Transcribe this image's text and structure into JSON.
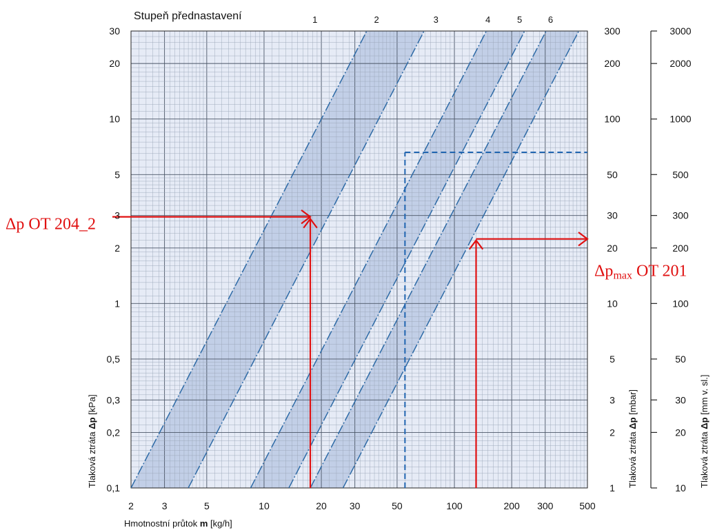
{
  "chart_data": {
    "type": "line",
    "x_scale": "log",
    "y_scale": "log",
    "xlim": [
      2,
      500
    ],
    "ylim": [
      0.1,
      30
    ],
    "grid": true,
    "series_label": "Stupeň přednastavení",
    "x_axis": {
      "label_prefix": "Hmotnostní průtok ",
      "label_bold": "m",
      "label_suffix": " [kg/h]",
      "ticks": [
        2,
        3,
        5,
        10,
        20,
        30,
        50,
        100,
        200,
        300,
        500
      ],
      "tick_labels": [
        "2",
        "3",
        "5",
        "10",
        "20",
        "30",
        "50",
        "100",
        "200",
        "300",
        "500"
      ]
    },
    "y_axes": [
      {
        "label_prefix": "Tlaková ztráta ",
        "label_bold": "Δp",
        "label_suffix": " [kPa]",
        "ticks": [
          0.1,
          0.2,
          0.3,
          0.5,
          1,
          2,
          3,
          5,
          10,
          20,
          30
        ],
        "tick_labels": [
          "0,1",
          "0,2",
          "0,3",
          "0,5",
          "1",
          "2",
          "3",
          "5",
          "10",
          "20",
          "30"
        ]
      },
      {
        "label_prefix": "Tlaková ztráta ",
        "label_bold": "Δp",
        "label_suffix": " [mbar]",
        "ticks": [
          0.1,
          0.2,
          0.3,
          0.5,
          1,
          2,
          3,
          5,
          10,
          20,
          30
        ],
        "tick_labels": [
          "1",
          "2",
          "3",
          "5",
          "10",
          "20",
          "30",
          "50",
          "100",
          "200",
          "300"
        ]
      },
      {
        "label_prefix": "Tlaková ztráta ",
        "label_bold": "Δp",
        "label_suffix": " [mm v. sl.]",
        "ticks": [
          0.1,
          0.2,
          0.3,
          0.5,
          1,
          2,
          3,
          5,
          10,
          20,
          30
        ],
        "tick_labels": [
          "10",
          "20",
          "30",
          "50",
          "100",
          "200",
          "300",
          "500",
          "1000",
          "2000",
          "3000"
        ]
      }
    ],
    "lines": [
      {
        "id": "a",
        "x_at_y_0_1": 2.0
      },
      {
        "id": "b",
        "x_at_y_0_1": 4.0
      },
      {
        "id": "c",
        "x_at_y_0_1": 8.5
      },
      {
        "id": "d",
        "x_at_y_0_1": 13.5
      },
      {
        "id": "e",
        "x_at_y_0_1": 17.5
      },
      {
        "id": "f",
        "x_at_y_0_1": 26.0
      }
    ],
    "line_slope": 2,
    "band_pairs": [
      [
        "a",
        "b"
      ],
      [
        "c",
        "d"
      ],
      [
        "e",
        "f"
      ]
    ],
    "preset_labels": [
      {
        "text": "1",
        "x": 18.5
      },
      {
        "text": "2",
        "x": 39
      },
      {
        "text": "3",
        "x": 80
      },
      {
        "text": "4",
        "x": 150
      },
      {
        "text": "5",
        "x": 220
      },
      {
        "text": "6",
        "x": 320
      }
    ],
    "reference_lines": {
      "vertical_x": 55,
      "horizontal_y": 6.6
    },
    "arrows": [
      {
        "id": "ot204",
        "from": [
          2,
          2.95
        ],
        "corner": [
          17.5,
          2.95
        ],
        "to": [
          17.5,
          0.1
        ]
      },
      {
        "id": "ot201",
        "from": [
          130,
          0.1
        ],
        "corner": [
          130,
          2.2
        ],
        "to": [
          500,
          2.2
        ]
      }
    ],
    "annotations": [
      {
        "id": "ot204",
        "text": "Δp OT 204_2"
      },
      {
        "id": "ot201",
        "pre": "Δp",
        "sub": "max",
        "post": " OT 201"
      }
    ],
    "colors": {
      "band_light": "#e6ebf6",
      "band_dark": "#c2cfe7",
      "grid": "#9aa6b8",
      "grid_major": "#4a5566",
      "series_line": "#2d6aa6",
      "reference": "#1f64b0",
      "annotation": "#e01010",
      "text": "#111111"
    }
  }
}
